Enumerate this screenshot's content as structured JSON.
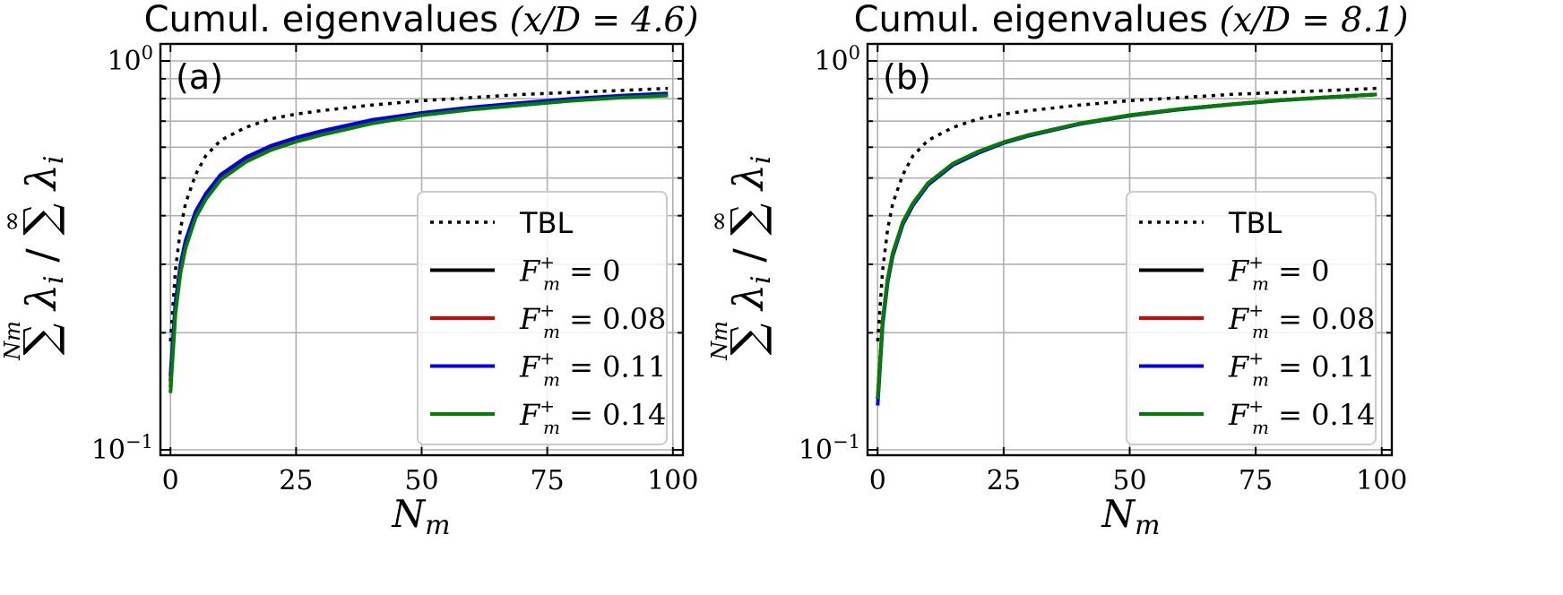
{
  "figure": {
    "ylabel_parts": {
      "sum_symbol": "∑",
      "upper_limit_left": "Nm",
      "lambda_term": "λi",
      "slash": "/",
      "upper_limit_right": "∞"
    },
    "xlabel": "Nm",
    "x_ticks": [
      "0",
      "25",
      "50",
      "75",
      "100"
    ],
    "y_ticks": [
      {
        "base": "10",
        "exp": "0"
      },
      {
        "base": "10",
        "exp": "−1"
      }
    ]
  },
  "chart_data": [
    {
      "type": "line",
      "panel_label": "(a)",
      "title": "Cumul. eigenvalues (x/D = 4.6)",
      "title_parts": {
        "text": "Cumul. eigenvalues",
        "math": "(x/D = 4.6)"
      },
      "xlabel": "Nm",
      "ylabel": "∑^Nm λi / ∑^∞ λi",
      "xlim": [
        -2,
        102
      ],
      "ylim": [
        0.1,
        1.0
      ],
      "yscale": "log",
      "x": [
        0,
        1,
        2,
        3,
        5,
        7,
        10,
        15,
        20,
        25,
        30,
        40,
        50,
        60,
        70,
        80,
        90,
        99
      ],
      "series": [
        {
          "name": "TBL",
          "style": "dotted",
          "color": "#000000",
          "values": [
            0.19,
            0.29,
            0.37,
            0.43,
            0.51,
            0.57,
            0.625,
            0.675,
            0.71,
            0.73,
            0.745,
            0.77,
            0.79,
            0.805,
            0.82,
            0.83,
            0.84,
            0.85
          ]
        },
        {
          "name": "F_m^+ = 0",
          "style": "solid",
          "color": "#000000",
          "values": [
            0.15,
            0.235,
            0.295,
            0.34,
            0.405,
            0.45,
            0.505,
            0.56,
            0.6,
            0.63,
            0.655,
            0.7,
            0.73,
            0.755,
            0.775,
            0.795,
            0.81,
            0.82
          ]
        },
        {
          "name": "F_m^+ = 0.08",
          "style": "solid",
          "color": "#e00000",
          "values": [
            0.145,
            0.23,
            0.29,
            0.335,
            0.4,
            0.445,
            0.5,
            0.555,
            0.595,
            0.625,
            0.65,
            0.695,
            0.73,
            0.752,
            0.773,
            0.793,
            0.808,
            0.818
          ]
        },
        {
          "name": "F_m^+ = 0.11",
          "style": "solid",
          "color": "#0000ee",
          "values": [
            0.155,
            0.24,
            0.3,
            0.345,
            0.41,
            0.455,
            0.51,
            0.565,
            0.605,
            0.635,
            0.66,
            0.705,
            0.735,
            0.76,
            0.78,
            0.8,
            0.815,
            0.825
          ]
        },
        {
          "name": "F_m^+ = 0.14",
          "style": "solid",
          "color": "#008000",
          "values": [
            0.14,
            0.225,
            0.285,
            0.33,
            0.395,
            0.44,
            0.495,
            0.55,
            0.59,
            0.62,
            0.645,
            0.69,
            0.725,
            0.75,
            0.77,
            0.79,
            0.805,
            0.815
          ]
        }
      ],
      "legend": {
        "location": "lower-right",
        "entries": [
          {
            "label": "TBL",
            "style": "dotted",
            "color": "#000000"
          },
          {
            "label_var": "F",
            "label_sup": "+",
            "label_sub": "m",
            "label_rest": " = 0",
            "style": "solid",
            "color": "#000000"
          },
          {
            "label_var": "F",
            "label_sup": "+",
            "label_sub": "m",
            "label_rest": " = 0.08",
            "style": "solid",
            "color": "#e00000"
          },
          {
            "label_var": "F",
            "label_sup": "+",
            "label_sub": "m",
            "label_rest": " = 0.11",
            "style": "solid",
            "color": "#0000ee"
          },
          {
            "label_var": "F",
            "label_sup": "+",
            "label_sub": "m",
            "label_rest": " = 0.14",
            "style": "solid",
            "color": "#008000"
          }
        ]
      },
      "grid": true
    },
    {
      "type": "line",
      "panel_label": "(b)",
      "title": "Cumul. eigenvalues (x/D = 8.1)",
      "title_parts": {
        "text": "Cumul. eigenvalues",
        "math": "(x/D = 8.1)"
      },
      "xlabel": "Nm",
      "ylabel": "∑^Nm λi / ∑^∞ λi",
      "xlim": [
        -2,
        102
      ],
      "ylim": [
        0.1,
        1.0
      ],
      "yscale": "log",
      "x": [
        0,
        1,
        2,
        3,
        5,
        7,
        10,
        15,
        20,
        25,
        30,
        40,
        50,
        60,
        70,
        80,
        90,
        99
      ],
      "series": [
        {
          "name": "TBL",
          "style": "dotted",
          "color": "#000000",
          "values": [
            0.19,
            0.29,
            0.37,
            0.43,
            0.51,
            0.57,
            0.625,
            0.675,
            0.71,
            0.73,
            0.745,
            0.77,
            0.79,
            0.805,
            0.82,
            0.83,
            0.84,
            0.85
          ]
        },
        {
          "name": "F_m^+ = 0",
          "style": "solid",
          "color": "#000000",
          "values": [
            0.135,
            0.215,
            0.275,
            0.32,
            0.385,
            0.43,
            0.485,
            0.545,
            0.585,
            0.618,
            0.645,
            0.69,
            0.725,
            0.752,
            0.773,
            0.793,
            0.808,
            0.82
          ]
        },
        {
          "name": "F_m^+ = 0.08",
          "style": "solid",
          "color": "#e00000",
          "values": [
            0.135,
            0.215,
            0.275,
            0.32,
            0.385,
            0.43,
            0.485,
            0.545,
            0.585,
            0.618,
            0.645,
            0.69,
            0.725,
            0.752,
            0.773,
            0.793,
            0.808,
            0.82
          ]
        },
        {
          "name": "F_m^+ = 0.11",
          "style": "solid",
          "color": "#0000ee",
          "values": [
            0.13,
            0.21,
            0.27,
            0.315,
            0.38,
            0.425,
            0.48,
            0.54,
            0.58,
            0.615,
            0.642,
            0.688,
            0.723,
            0.75,
            0.772,
            0.792,
            0.807,
            0.82
          ]
        },
        {
          "name": "F_m^+ = 0.14",
          "style": "solid",
          "color": "#008000",
          "values": [
            0.135,
            0.215,
            0.275,
            0.32,
            0.385,
            0.43,
            0.485,
            0.545,
            0.585,
            0.618,
            0.645,
            0.69,
            0.725,
            0.752,
            0.773,
            0.793,
            0.808,
            0.82
          ]
        }
      ],
      "legend": {
        "location": "lower-right",
        "entries": [
          {
            "label": "TBL",
            "style": "dotted",
            "color": "#000000"
          },
          {
            "label_var": "F",
            "label_sup": "+",
            "label_sub": "m",
            "label_rest": " = 0",
            "style": "solid",
            "color": "#000000"
          },
          {
            "label_var": "F",
            "label_sup": "+",
            "label_sub": "m",
            "label_rest": " = 0.08",
            "style": "solid",
            "color": "#e00000"
          },
          {
            "label_var": "F",
            "label_sup": "+",
            "label_sub": "m",
            "label_rest": " = 0.11",
            "style": "solid",
            "color": "#0000ee"
          },
          {
            "label_var": "F",
            "label_sup": "+",
            "label_sub": "m",
            "label_rest": " = 0.14",
            "style": "solid",
            "color": "#008000"
          }
        ]
      },
      "grid": true
    }
  ]
}
